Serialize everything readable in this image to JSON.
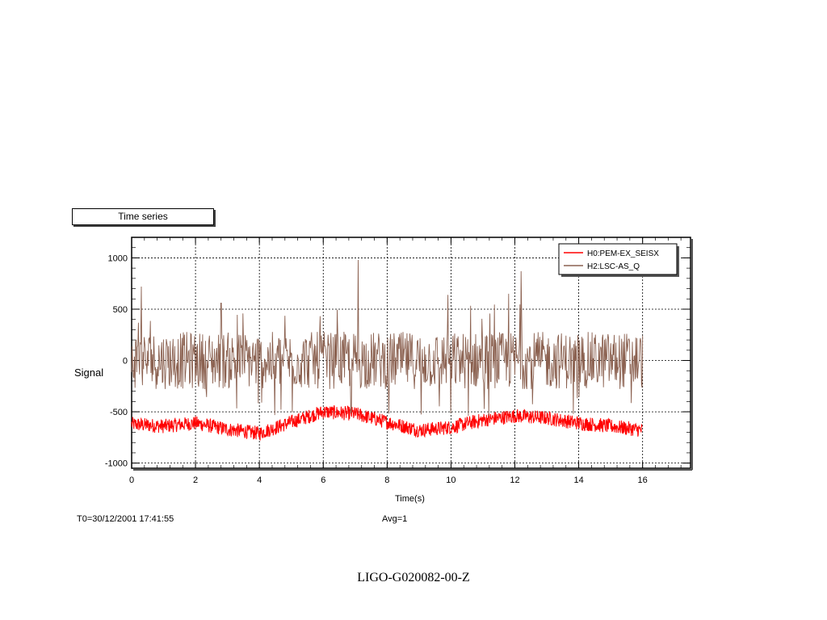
{
  "footer": {
    "document_id": "LIGO-G020082-00-Z"
  },
  "chart_data": {
    "type": "line",
    "title": "Time series",
    "xlabel": "Time(s)",
    "ylabel": "Signal",
    "xlim": [
      0,
      17.5
    ],
    "ylim": [
      -1050,
      1200
    ],
    "x_ticks": [
      0,
      2,
      4,
      6,
      8,
      10,
      12,
      14,
      16
    ],
    "y_ticks": [
      -1000,
      -500,
      0,
      500,
      1000
    ],
    "grid": true,
    "legend_position": "top-right",
    "annotations": {
      "t0": "T0=30/12/2001 17:41:55",
      "avg": "Avg=1"
    },
    "series": [
      {
        "name": "H0:PEM-EX_SEISX",
        "color": "#ff0000",
        "kind": "noise",
        "duration_s": 16,
        "noise_amplitude": 70,
        "mean_envelope": [
          [
            0,
            -620
          ],
          [
            1,
            -640
          ],
          [
            2,
            -610
          ],
          [
            3,
            -670
          ],
          [
            4,
            -710
          ],
          [
            5,
            -600
          ],
          [
            6,
            -500
          ],
          [
            7,
            -520
          ],
          [
            8,
            -600
          ],
          [
            9,
            -680
          ],
          [
            10,
            -650
          ],
          [
            11,
            -580
          ],
          [
            12,
            -540
          ],
          [
            13,
            -560
          ],
          [
            14,
            -610
          ],
          [
            15,
            -640
          ],
          [
            16,
            -680
          ]
        ]
      },
      {
        "name": "H2:LSC-AS_Q",
        "color": "#8b6150",
        "kind": "noise",
        "duration_s": 16,
        "noise_amplitude": 280,
        "mean": 0,
        "peaks": [
          [
            0.3,
            720
          ],
          [
            2.8,
            560
          ],
          [
            5.9,
            600
          ],
          [
            7.1,
            980
          ],
          [
            9.9,
            640
          ],
          [
            11.8,
            650
          ],
          [
            12.2,
            870
          ]
        ]
      }
    ]
  }
}
